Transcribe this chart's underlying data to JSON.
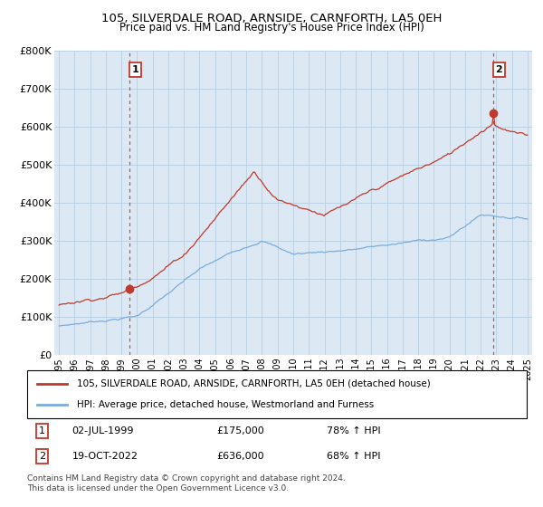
{
  "title": "105, SILVERDALE ROAD, ARNSIDE, CARNFORTH, LA5 0EH",
  "subtitle": "Price paid vs. HM Land Registry's House Price Index (HPI)",
  "ylim": [
    0,
    800000
  ],
  "yticks": [
    0,
    100000,
    200000,
    300000,
    400000,
    500000,
    600000,
    700000,
    800000
  ],
  "ytick_labels": [
    "£0",
    "£100K",
    "£200K",
    "£300K",
    "£400K",
    "£500K",
    "£600K",
    "£700K",
    "£800K"
  ],
  "xtick_years": [
    1995,
    1996,
    1997,
    1998,
    1999,
    2000,
    2001,
    2002,
    2003,
    2004,
    2005,
    2006,
    2007,
    2008,
    2009,
    2010,
    2011,
    2012,
    2013,
    2014,
    2015,
    2016,
    2017,
    2018,
    2019,
    2020,
    2021,
    2022,
    2023,
    2024,
    2025
  ],
  "hpi_color": "#7aacdc",
  "price_color": "#c0392b",
  "sale1_x": 1999.5,
  "sale1_y": 175000,
  "sale2_x": 2022.8,
  "sale2_y": 636000,
  "legend_line1": "105, SILVERDALE ROAD, ARNSIDE, CARNFORTH, LA5 0EH (detached house)",
  "legend_line2": "HPI: Average price, detached house, Westmorland and Furness",
  "chart_bg": "#dce9f5",
  "background_color": "#ffffff",
  "grid_color": "#b8cfe0",
  "footnote3": "Contains HM Land Registry data © Crown copyright and database right 2024.",
  "footnote4": "This data is licensed under the Open Government Licence v3.0."
}
